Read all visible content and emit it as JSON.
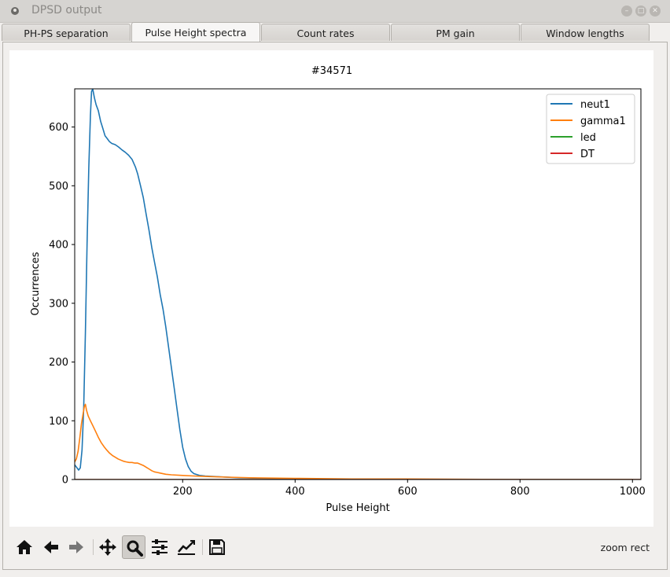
{
  "window": {
    "title": "DPSD output"
  },
  "tabs": [
    {
      "label": "PH-PS separation",
      "active": false
    },
    {
      "label": "Pulse Height spectra",
      "active": true
    },
    {
      "label": "Count rates",
      "active": false
    },
    {
      "label": "PM gain",
      "active": false
    },
    {
      "label": "Window lengths",
      "active": false
    }
  ],
  "toolbar": {
    "tools": [
      "home-icon",
      "back-icon",
      "forward-icon",
      "pan-icon",
      "zoom-icon",
      "subplots-icon",
      "edit-curves-icon",
      "save-icon"
    ],
    "active_tool": "zoom-icon",
    "status": "zoom rect"
  },
  "chart_data": {
    "type": "line",
    "title": "#34571",
    "xlabel": "Pulse Height",
    "ylabel": "Occurrences",
    "xlim": [
      8,
      1015
    ],
    "ylim": [
      0,
      665
    ],
    "xticks": [
      200,
      400,
      600,
      800,
      1000
    ],
    "yticks": [
      0,
      100,
      200,
      300,
      400,
      500,
      600
    ],
    "grid": false,
    "legend_position": "top-right",
    "series": [
      {
        "name": "neut1",
        "color": "#1f77b4",
        "points": [
          [
            8,
            25
          ],
          [
            12,
            20
          ],
          [
            15,
            16
          ],
          [
            18,
            20
          ],
          [
            21,
            50
          ],
          [
            24,
            120
          ],
          [
            27,
            250
          ],
          [
            30,
            400
          ],
          [
            33,
            530
          ],
          [
            36,
            620
          ],
          [
            38,
            660
          ],
          [
            40,
            665
          ],
          [
            43,
            650
          ],
          [
            46,
            638
          ],
          [
            50,
            628
          ],
          [
            54,
            610
          ],
          [
            58,
            598
          ],
          [
            62,
            585
          ],
          [
            66,
            580
          ],
          [
            70,
            575
          ],
          [
            74,
            572
          ],
          [
            80,
            570
          ],
          [
            86,
            566
          ],
          [
            92,
            561
          ],
          [
            98,
            557
          ],
          [
            104,
            552
          ],
          [
            110,
            545
          ],
          [
            116,
            532
          ],
          [
            120,
            520
          ],
          [
            125,
            500
          ],
          [
            130,
            480
          ],
          [
            135,
            452
          ],
          [
            140,
            425
          ],
          [
            145,
            395
          ],
          [
            150,
            370
          ],
          [
            155,
            345
          ],
          [
            160,
            315
          ],
          [
            165,
            290
          ],
          [
            170,
            260
          ],
          [
            175,
            225
          ],
          [
            180,
            190
          ],
          [
            185,
            155
          ],
          [
            190,
            120
          ],
          [
            195,
            85
          ],
          [
            200,
            55
          ],
          [
            205,
            35
          ],
          [
            210,
            22
          ],
          [
            215,
            14
          ],
          [
            220,
            10
          ],
          [
            230,
            7
          ],
          [
            240,
            6
          ],
          [
            260,
            5
          ],
          [
            300,
            3
          ],
          [
            400,
            1
          ],
          [
            600,
            0
          ],
          [
            1000,
            0
          ]
        ]
      },
      {
        "name": "gamma1",
        "color": "#ff7f0e",
        "points": [
          [
            8,
            30
          ],
          [
            11,
            35
          ],
          [
            14,
            48
          ],
          [
            17,
            70
          ],
          [
            20,
            95
          ],
          [
            23,
            112
          ],
          [
            25,
            124
          ],
          [
            27,
            128
          ],
          [
            29,
            118
          ],
          [
            32,
            108
          ],
          [
            36,
            100
          ],
          [
            40,
            92
          ],
          [
            45,
            82
          ],
          [
            50,
            72
          ],
          [
            55,
            63
          ],
          [
            60,
            56
          ],
          [
            65,
            50
          ],
          [
            70,
            45
          ],
          [
            75,
            41
          ],
          [
            80,
            38
          ],
          [
            85,
            35
          ],
          [
            90,
            33
          ],
          [
            95,
            31
          ],
          [
            100,
            30
          ],
          [
            105,
            29
          ],
          [
            110,
            29
          ],
          [
            115,
            28
          ],
          [
            120,
            28
          ],
          [
            125,
            26
          ],
          [
            130,
            24
          ],
          [
            135,
            21
          ],
          [
            140,
            18
          ],
          [
            145,
            15
          ],
          [
            150,
            13
          ],
          [
            155,
            12
          ],
          [
            160,
            11
          ],
          [
            170,
            9
          ],
          [
            180,
            8
          ],
          [
            200,
            7
          ],
          [
            220,
            6
          ],
          [
            250,
            5
          ],
          [
            280,
            4
          ],
          [
            320,
            3
          ],
          [
            400,
            2
          ],
          [
            500,
            1
          ],
          [
            600,
            1
          ],
          [
            800,
            0
          ],
          [
            1000,
            0
          ]
        ]
      },
      {
        "name": "led",
        "color": "#2ca02c",
        "points": [
          [
            8,
            0
          ],
          [
            1015,
            0
          ]
        ]
      },
      {
        "name": "DT",
        "color": "#d62728",
        "points": [
          [
            8,
            0
          ],
          [
            1015,
            0
          ]
        ]
      }
    ]
  }
}
